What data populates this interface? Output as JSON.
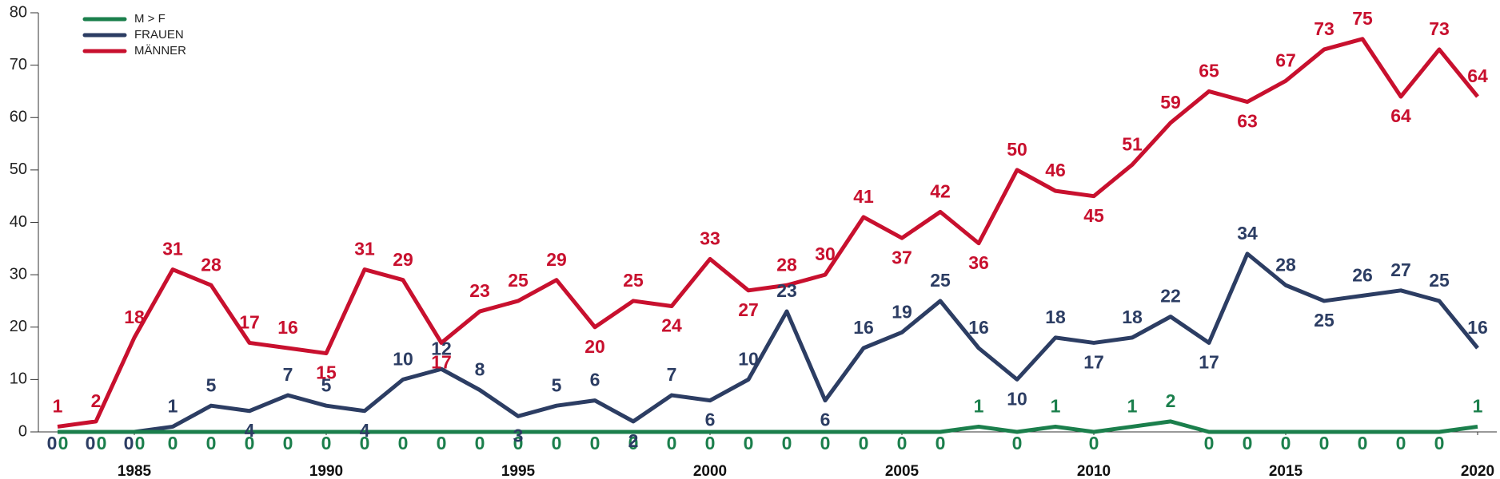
{
  "chart_data": {
    "type": "line",
    "x": [
      1983,
      1984,
      1985,
      1986,
      1987,
      1988,
      1989,
      1990,
      1991,
      1992,
      1993,
      1994,
      1995,
      1996,
      1997,
      1998,
      1999,
      2000,
      2001,
      2002,
      2003,
      2004,
      2005,
      2006,
      2007,
      2008,
      2009,
      2010,
      2011,
      2012,
      2013,
      2014,
      2015,
      2016,
      2017,
      2018,
      2019,
      2020
    ],
    "series": [
      {
        "name": "M > F",
        "color": "#1b7f4c",
        "values": [
          0,
          0,
          0,
          0,
          0,
          0,
          0,
          0,
          0,
          0,
          0,
          0,
          0,
          0,
          0,
          0,
          0,
          0,
          0,
          0,
          0,
          0,
          0,
          0,
          1,
          0,
          1,
          0,
          1,
          2,
          0,
          0,
          0,
          0,
          0,
          0,
          0,
          1
        ]
      },
      {
        "name": "FRAUEN",
        "color": "#2c3d63",
        "values": [
          0,
          0,
          0,
          1,
          5,
          4,
          7,
          5,
          4,
          10,
          12,
          8,
          3,
          5,
          6,
          2,
          7,
          6,
          10,
          23,
          6,
          16,
          19,
          25,
          16,
          10,
          18,
          17,
          18,
          22,
          17,
          34,
          28,
          25,
          26,
          27,
          25,
          16
        ]
      },
      {
        "name": "MÄNNER",
        "color": "#c8102e",
        "values": [
          1,
          2,
          18,
          31,
          28,
          17,
          16,
          15,
          31,
          29,
          17,
          23,
          25,
          29,
          20,
          25,
          24,
          33,
          27,
          28,
          30,
          41,
          37,
          42,
          36,
          50,
          46,
          45,
          51,
          59,
          65,
          63,
          67,
          73,
          75,
          64,
          73,
          64
        ]
      }
    ],
    "xlim": [
      1982.5,
      2020.5
    ],
    "xticks": [
      1985,
      1990,
      1995,
      2000,
      2005,
      2010,
      2015,
      2020
    ],
    "ylim": [
      0,
      80
    ],
    "yticks": [
      0,
      10,
      20,
      30,
      40,
      50,
      60,
      70,
      80
    ],
    "grid": false,
    "legend": "upper left"
  }
}
